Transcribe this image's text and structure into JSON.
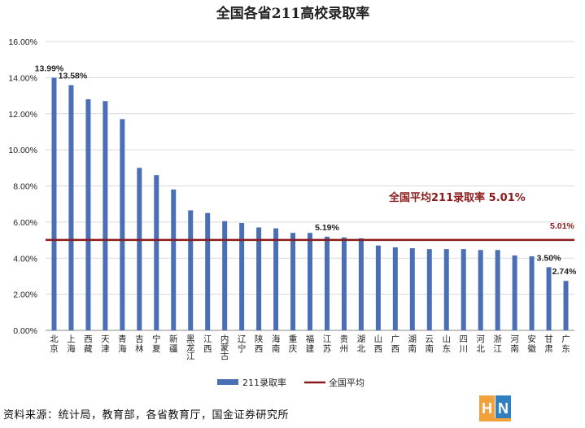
{
  "chart_data": {
    "type": "bar",
    "title": "全国各省211高校录取率",
    "categories": [
      "北京",
      "上海",
      "西藏",
      "天津",
      "青海",
      "吉林",
      "宁夏",
      "新疆",
      "黑龙江",
      "江西",
      "内蒙古",
      "辽宁",
      "陕西",
      "海南",
      "重庆",
      "福建",
      "江苏",
      "贵州",
      "湖北",
      "山西",
      "广西",
      "湖南",
      "云南",
      "山东",
      "四川",
      "河北",
      "浙江",
      "河南",
      "安徽",
      "甘肃",
      "广东"
    ],
    "series": [
      {
        "name": "211录取率",
        "color": "#4a6fb5",
        "values": [
          13.99,
          13.58,
          12.8,
          12.7,
          11.7,
          9.0,
          8.6,
          7.8,
          6.65,
          6.5,
          6.05,
          5.95,
          5.7,
          5.65,
          5.4,
          5.4,
          5.19,
          5.15,
          5.1,
          4.7,
          4.6,
          4.55,
          4.5,
          4.5,
          4.5,
          4.45,
          4.45,
          4.15,
          4.1,
          3.5,
          2.74
        ]
      }
    ],
    "reference_line": {
      "name": "全国平均",
      "value": 5.01,
      "color": "#8b1a1a"
    },
    "data_labels": [
      {
        "category": "北京",
        "text": "13.99%"
      },
      {
        "category": "上海",
        "text": "13.58%"
      },
      {
        "category": "江苏",
        "text": "5.19%"
      },
      {
        "category": "甘肃",
        "text": "3.50%"
      },
      {
        "category": "广东",
        "text": "2.74%"
      }
    ],
    "annotation": "全国平均211录取率 5.01%",
    "reference_label": "5.01%",
    "yticks": [
      "0.00%",
      "2.00%",
      "4.00%",
      "6.00%",
      "8.00%",
      "10.00%",
      "12.00%",
      "14.00%",
      "16.00%"
    ],
    "ylim": [
      0,
      16
    ],
    "grid": true,
    "legend_position": "bottom",
    "xlabel": "",
    "ylabel": ""
  },
  "footer": {
    "source": "资料来源：统计局，教育部，各省教育厅，国金证券研究所",
    "logo_letters": "HN"
  }
}
